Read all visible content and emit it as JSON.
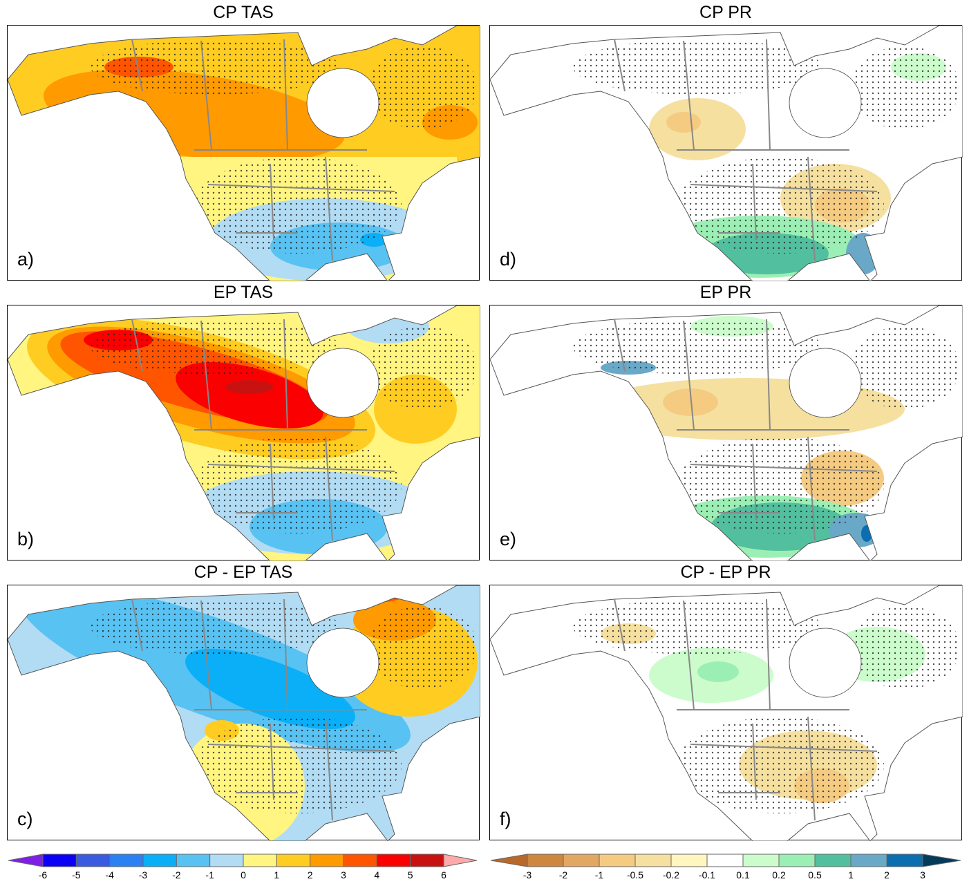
{
  "panels": [
    {
      "title": "CP TAS",
      "label": "a)"
    },
    {
      "title": "EP TAS",
      "label": "b)"
    },
    {
      "title": "CP - EP TAS",
      "label": "c)"
    },
    {
      "title": "CP PR",
      "label": "d)"
    },
    {
      "title": "EP PR",
      "label": "e)"
    },
    {
      "title": "CP - EP PR",
      "label": "f)"
    }
  ],
  "tas_colorbar": {
    "ticks": [
      "-6",
      "-5",
      "-4",
      "-3",
      "-2",
      "-1",
      "0",
      "1",
      "2",
      "3",
      "4",
      "5",
      "6"
    ],
    "colors": [
      "#7f1fe6",
      "#0a00f5",
      "#3a5ae0",
      "#2a82f2",
      "#0aaff8",
      "#58c2f2",
      "#b1dcf4",
      "#fff580",
      "#ffcc22",
      "#ff9a00",
      "#ff5500",
      "#fa0000",
      "#c81212",
      "#ffaaaa"
    ]
  },
  "pr_colorbar": {
    "ticks": [
      "-3",
      "-2",
      "-1",
      "-0.5",
      "-0.2",
      "-0.1",
      "0.1",
      "0.2",
      "0.5",
      "1",
      "2",
      "3"
    ],
    "colors": [
      "#b8692a",
      "#cd873f",
      "#e2a863",
      "#f5cb82",
      "#f5e0a0",
      "#fff6c0",
      "#ffffff",
      "#ccfccc",
      "#9cefb4",
      "#52c09e",
      "#6aa8c8",
      "#0a6eb0",
      "#043a5a"
    ]
  }
}
